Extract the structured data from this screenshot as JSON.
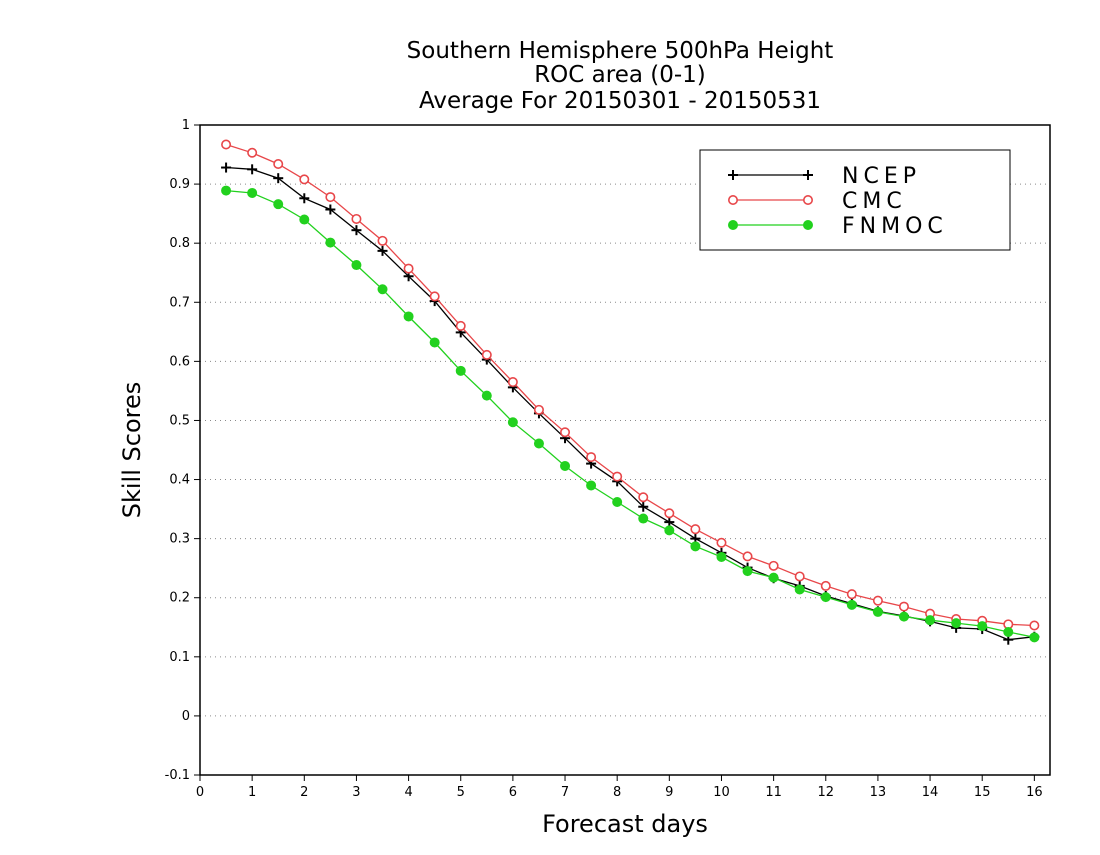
{
  "chart_data": {
    "type": "line",
    "title": "Southern Hemisphere 500hPa Height",
    "subtitle": "ROC area (0-1)",
    "subtitle2": "Average For 20150301 - 20150531",
    "xlabel": "Forecast days",
    "ylabel": "Skill Scores",
    "xlim": [
      0,
      16.3
    ],
    "ylim": [
      -0.1,
      1
    ],
    "xticks": [
      0,
      1,
      2,
      3,
      4,
      5,
      6,
      7,
      8,
      9,
      10,
      11,
      12,
      13,
      14,
      15,
      16
    ],
    "xtick_labels": [
      "0",
      "1",
      "2",
      "3",
      "4",
      "5",
      "6",
      "7",
      "8",
      "9",
      "10",
      "11",
      "12",
      "13",
      "14",
      "15",
      "16"
    ],
    "yticks": [
      -0.1,
      0,
      0.1,
      0.2,
      0.3,
      0.4,
      0.5,
      0.6,
      0.7,
      0.8,
      0.9,
      1
    ],
    "ytick_labels": [
      "-0.1",
      "0",
      "0.1",
      "0.2",
      "0.3",
      "0.4",
      "0.5",
      "0.6",
      "0.7",
      "0.8",
      "0.9",
      "1"
    ],
    "grid": "horizontal dotted",
    "legend_position": "top-right",
    "x": [
      0.5,
      1,
      1.5,
      2,
      2.5,
      3,
      3.5,
      4,
      4.5,
      5,
      5.5,
      6,
      6.5,
      7,
      7.5,
      8,
      8.5,
      9,
      9.5,
      10,
      10.5,
      11,
      11.5,
      12,
      12.5,
      13,
      13.5,
      14,
      14.5,
      15,
      15.5,
      16
    ],
    "series": [
      {
        "name": "NCEP",
        "color": "#000000",
        "marker": "plus",
        "values": [
          0.928,
          0.925,
          0.91,
          0.876,
          0.857,
          0.822,
          0.787,
          0.744,
          0.702,
          0.649,
          0.603,
          0.556,
          0.512,
          0.47,
          0.427,
          0.397,
          0.354,
          0.328,
          0.3,
          0.276,
          0.251,
          0.233,
          0.22,
          0.203,
          0.19,
          0.177,
          0.169,
          0.16,
          0.149,
          0.147,
          0.129,
          0.134
        ]
      },
      {
        "name": "CMC",
        "color": "#e8474a",
        "marker": "open-circle",
        "values": [
          0.967,
          0.953,
          0.934,
          0.908,
          0.878,
          0.841,
          0.804,
          0.757,
          0.71,
          0.66,
          0.611,
          0.565,
          0.518,
          0.48,
          0.438,
          0.405,
          0.37,
          0.343,
          0.316,
          0.293,
          0.27,
          0.254,
          0.236,
          0.22,
          0.206,
          0.195,
          0.185,
          0.173,
          0.164,
          0.161,
          0.155,
          0.153
        ]
      },
      {
        "name": "FNMOC",
        "color": "#22d11e",
        "marker": "filled-circle",
        "values": [
          0.889,
          0.885,
          0.866,
          0.84,
          0.801,
          0.763,
          0.722,
          0.676,
          0.632,
          0.584,
          0.542,
          0.497,
          0.461,
          0.423,
          0.39,
          0.362,
          0.334,
          0.314,
          0.287,
          0.269,
          0.245,
          0.234,
          0.214,
          0.201,
          0.188,
          0.176,
          0.168,
          0.162,
          0.157,
          0.152,
          0.142,
          0.133
        ]
      }
    ]
  }
}
